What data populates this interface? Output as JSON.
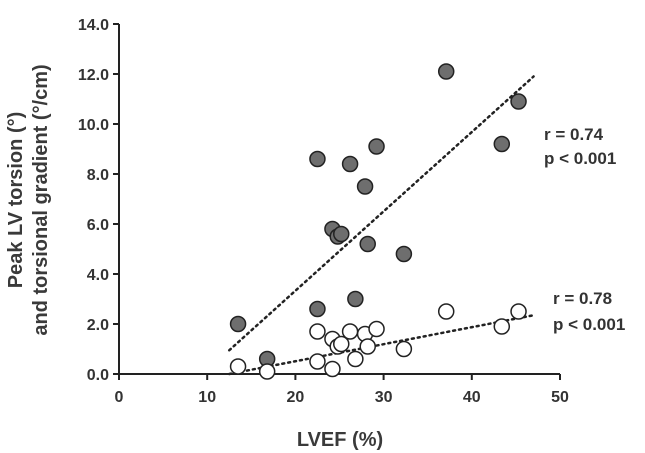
{
  "chart_data": {
    "type": "scatter",
    "xlabel": "LVEF (%)",
    "ylabel_line1": "Peak LV torsion (°)",
    "ylabel_line2": "and torsional gradient (°/cm)",
    "xlim": [
      0,
      50
    ],
    "ylim": [
      0,
      14
    ],
    "x_ticks": [
      0,
      10,
      20,
      30,
      40,
      50
    ],
    "y_ticks": [
      0.0,
      2.0,
      4.0,
      6.0,
      8.0,
      10.0,
      12.0,
      14.0
    ],
    "y_tick_labels": [
      "0.0",
      "2.0",
      "4.0",
      "6.0",
      "8.0",
      "10.0",
      "12.0",
      "14.0"
    ],
    "grid": false,
    "series": [
      {
        "marker": "filled-circle",
        "color": "#6e6e6e",
        "points": [
          {
            "x": 13.5,
            "y": 2.0
          },
          {
            "x": 16.8,
            "y": 0.6
          },
          {
            "x": 22.5,
            "y": 8.6
          },
          {
            "x": 22.5,
            "y": 2.6
          },
          {
            "x": 24.2,
            "y": 5.8
          },
          {
            "x": 24.8,
            "y": 5.5
          },
          {
            "x": 25.2,
            "y": 5.6
          },
          {
            "x": 26.2,
            "y": 8.4
          },
          {
            "x": 26.8,
            "y": 3.0
          },
          {
            "x": 27.9,
            "y": 7.5
          },
          {
            "x": 28.2,
            "y": 5.2
          },
          {
            "x": 29.2,
            "y": 9.1
          },
          {
            "x": 32.3,
            "y": 4.8
          },
          {
            "x": 37.1,
            "y": 12.1
          },
          {
            "x": 43.4,
            "y": 9.2
          },
          {
            "x": 45.3,
            "y": 10.9
          }
        ],
        "trend": {
          "x1": 12.5,
          "y1": 0.95,
          "x2": 47.0,
          "y2": 11.9
        },
        "r": "r = 0.74",
        "p": "p < 0.001"
      },
      {
        "marker": "open-circle",
        "color": "#ffffff",
        "points": [
          {
            "x": 13.5,
            "y": 0.3
          },
          {
            "x": 16.8,
            "y": 0.1
          },
          {
            "x": 22.5,
            "y": 1.7
          },
          {
            "x": 22.5,
            "y": 0.5
          },
          {
            "x": 24.2,
            "y": 1.4
          },
          {
            "x": 24.2,
            "y": 0.2
          },
          {
            "x": 24.8,
            "y": 1.1
          },
          {
            "x": 25.2,
            "y": 1.2
          },
          {
            "x": 26.2,
            "y": 1.7
          },
          {
            "x": 26.8,
            "y": 0.6
          },
          {
            "x": 27.9,
            "y": 1.6
          },
          {
            "x": 28.2,
            "y": 1.1
          },
          {
            "x": 29.2,
            "y": 1.8
          },
          {
            "x": 32.3,
            "y": 1.0
          },
          {
            "x": 37.1,
            "y": 2.5
          },
          {
            "x": 43.4,
            "y": 1.9
          },
          {
            "x": 45.3,
            "y": 2.5
          }
        ],
        "trend": {
          "x1": 12.5,
          "y1": 0.0,
          "x2": 47.0,
          "y2": 2.35
        },
        "r": "r = 0.78",
        "p": "p < 0.001"
      }
    ]
  }
}
